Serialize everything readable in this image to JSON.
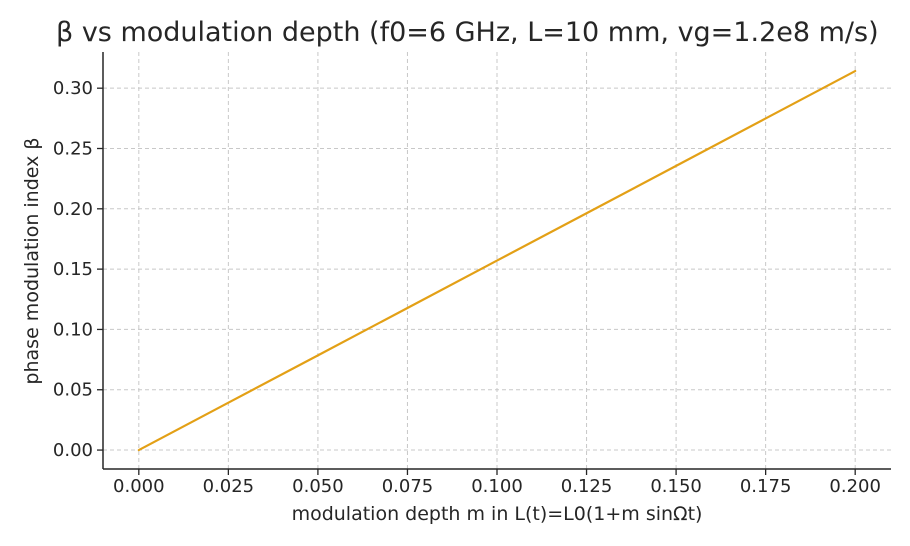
{
  "chart_data": {
    "type": "line",
    "title": "β vs modulation depth (f0=6 GHz, L=10 mm, vg=1.2e8 m/s)",
    "xlabel": "modulation depth m in L(t)=L0(1+m sinΩt)",
    "ylabel": "phase modulation index β",
    "xlim": [
      -0.01,
      0.21
    ],
    "ylim": [
      -0.0157,
      0.33
    ],
    "xticks": [
      0.0,
      0.025,
      0.05,
      0.075,
      0.1,
      0.125,
      0.15,
      0.175,
      0.2
    ],
    "xtick_labels": [
      "0.000",
      "0.025",
      "0.050",
      "0.075",
      "0.100",
      "0.125",
      "0.150",
      "0.175",
      "0.200"
    ],
    "yticks": [
      0.0,
      0.05,
      0.1,
      0.15,
      0.2,
      0.25,
      0.3
    ],
    "ytick_labels": [
      "0.00",
      "0.05",
      "0.10",
      "0.15",
      "0.20",
      "0.25",
      "0.30"
    ],
    "grid": true,
    "series": [
      {
        "color": "#e3a016",
        "x": [
          0.0,
          0.025,
          0.05,
          0.075,
          0.1,
          0.125,
          0.15,
          0.175,
          0.2
        ],
        "y": [
          0.0,
          0.0393,
          0.0785,
          0.1178,
          0.1571,
          0.1963,
          0.2356,
          0.2749,
          0.3142
        ]
      }
    ]
  }
}
